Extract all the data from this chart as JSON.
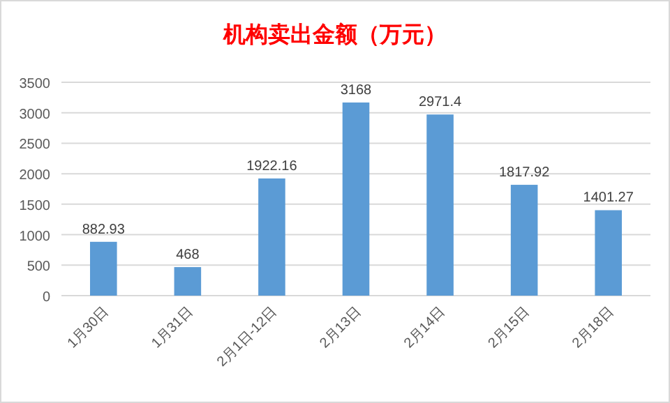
{
  "chart_data": {
    "type": "bar",
    "title": "机构卖出金额（万元）",
    "categories": [
      "1月30日",
      "1月31日",
      "2月1日-12日",
      "2月13日",
      "2月14日",
      "2月15日",
      "2月18日"
    ],
    "values": [
      882.93,
      468,
      1922.16,
      3168,
      2971.4,
      1817.92,
      1401.27
    ],
    "color": "#5b9bd5",
    "ylim": [
      0,
      3500
    ],
    "yticks": [
      0,
      500,
      1000,
      1500,
      2000,
      2500,
      3000,
      3500
    ],
    "grid": "y",
    "data_labels": true
  }
}
